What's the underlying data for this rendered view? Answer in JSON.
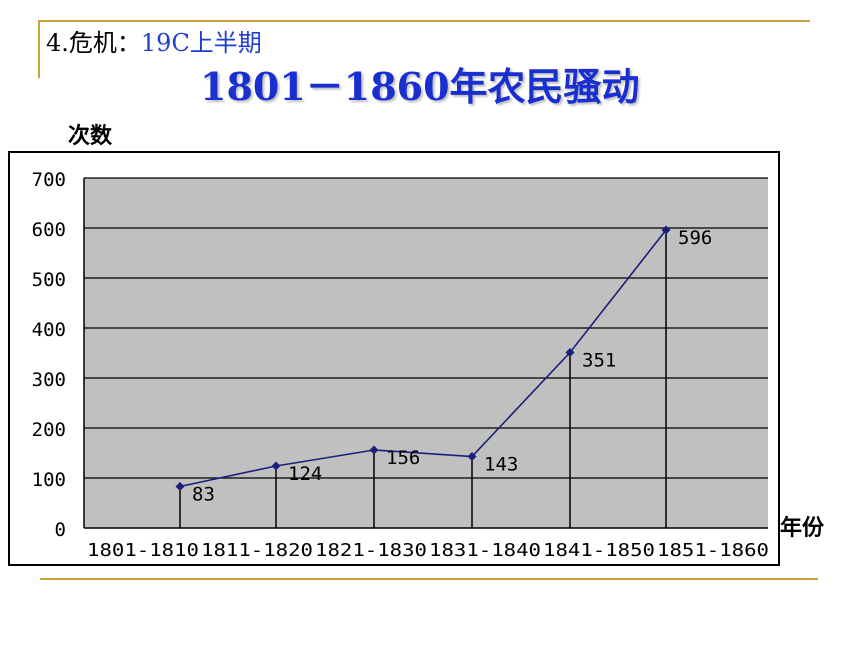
{
  "header": {
    "prefix": "4.危机：",
    "sub": "19C上半期"
  },
  "colors": {
    "accent": "#c8a23c",
    "title": "#1a2fd0",
    "plot_bg": "#c0c0c0",
    "line": "#1a1f7a"
  },
  "chart_data": {
    "type": "line",
    "title": "1801－1860年农民骚动",
    "ylabel": "次数",
    "xlabel": "年份",
    "categories": [
      "1801-1810",
      "1811-1820",
      "1821-1830",
      "1831-1840",
      "1841-1850",
      "1851-1860"
    ],
    "series": [
      {
        "values": [
          83,
          124,
          156,
          143,
          351,
          596
        ]
      }
    ],
    "data_labels": [
      "83",
      "124",
      "156",
      "143",
      "351",
      "596"
    ],
    "ylim": [
      0,
      700
    ],
    "yticks": [
      "0",
      "100",
      "200",
      "300",
      "400",
      "500",
      "600",
      "700"
    ],
    "grid": true,
    "legend": "none"
  }
}
